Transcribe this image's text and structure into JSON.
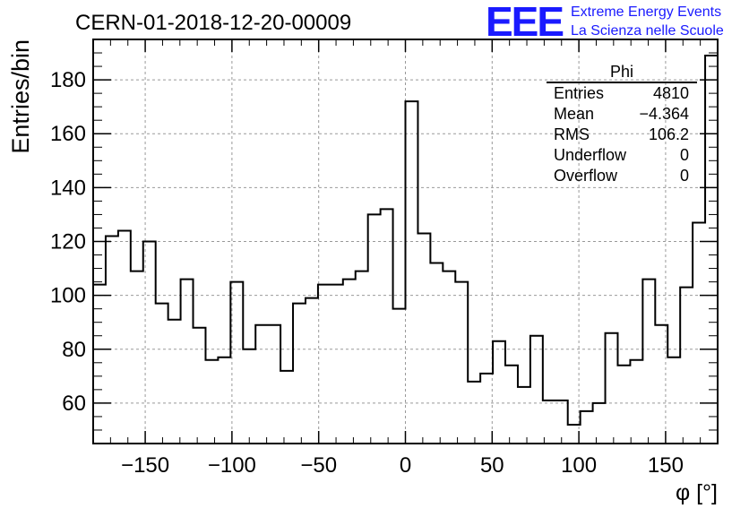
{
  "header": {
    "run_title": "CERN-01-2018-12-20-00009",
    "logo_text": "EEE",
    "org_line1": "Extreme Energy Events",
    "org_line2": "La Scienza nelle Scuole"
  },
  "colors": {
    "logo": "#1a1aff",
    "grid": "#999999",
    "line": "#000000"
  },
  "stats_box": {
    "title": "Phi",
    "rows": [
      {
        "label": "Entries",
        "value": "4810"
      },
      {
        "label": "Mean",
        "value": "−4.364"
      },
      {
        "label": "RMS",
        "value": "106.2"
      },
      {
        "label": "Underflow",
        "value": "0"
      },
      {
        "label": "Overflow",
        "value": "0"
      }
    ]
  },
  "chart_data": {
    "type": "histogram",
    "xlabel": "φ [°]",
    "ylabel": "Entries/bin",
    "xlim": [
      -180,
      180
    ],
    "ylim": [
      45,
      195
    ],
    "grid": true,
    "bin_width": 7.2,
    "x_ticks": [
      -150,
      -100,
      -50,
      0,
      50,
      100,
      150
    ],
    "x_tick_labels": [
      "−150",
      "−100",
      "−50",
      "0",
      "50",
      "100",
      "150"
    ],
    "y_ticks": [
      60,
      80,
      100,
      120,
      140,
      160,
      180
    ],
    "y_tick_labels": [
      "60",
      "80",
      "100",
      "120",
      "140",
      "160",
      "180"
    ],
    "bin_lower_edges": [
      -180,
      -172.8,
      -165.6,
      -158.4,
      -151.2,
      -144,
      -136.8,
      -129.6,
      -122.4,
      -115.2,
      -108,
      -100.8,
      -93.6,
      -86.4,
      -79.2,
      -72,
      -64.8,
      -57.6,
      -50.4,
      -43.2,
      -36,
      -28.8,
      -21.6,
      -14.4,
      -7.2,
      0,
      7.2,
      14.4,
      21.6,
      28.8,
      36,
      43.2,
      50.4,
      57.6,
      64.8,
      72,
      79.2,
      86.4,
      93.6,
      100.8,
      108,
      115.2,
      122.4,
      129.6,
      136.8,
      144,
      151.2,
      158.4,
      165.6,
      172.8
    ],
    "counts": [
      104,
      122,
      124,
      109,
      120,
      97,
      91,
      106,
      88,
      76,
      77,
      105,
      80,
      89,
      89,
      72,
      97,
      99,
      104,
      104,
      106,
      109,
      130,
      132,
      95,
      172,
      123,
      112,
      109,
      105,
      68,
      71,
      83,
      74,
      66,
      85,
      61,
      61,
      52,
      57,
      60,
      86,
      74,
      76,
      106,
      89,
      77,
      103,
      127,
      189
    ]
  }
}
